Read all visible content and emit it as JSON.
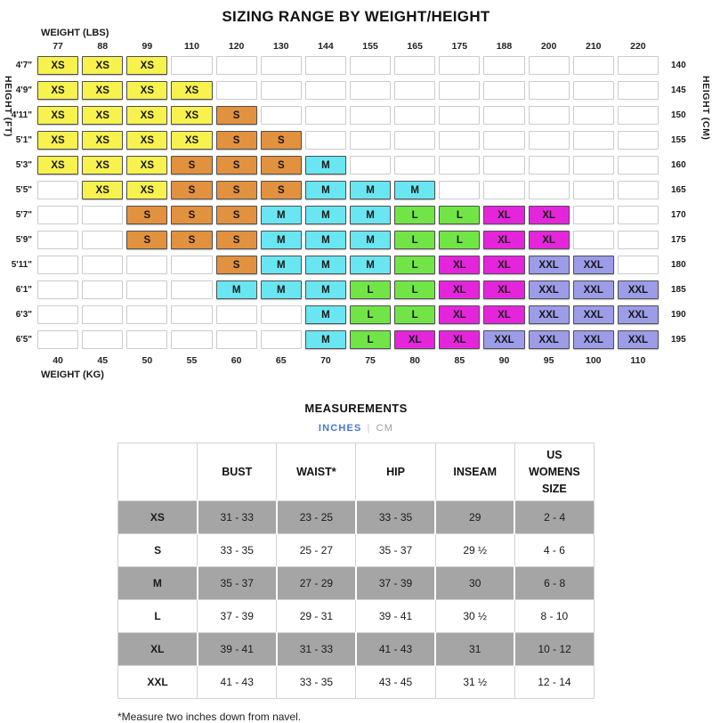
{
  "chart_data": [
    {
      "type": "heatmap",
      "title": "SIZING RANGE BY WEIGHT/HEIGHT",
      "x_top_label": "WEIGHT (LBS)",
      "x_top_ticks": [
        "77",
        "88",
        "99",
        "110",
        "120",
        "130",
        "144",
        "155",
        "165",
        "175",
        "188",
        "200",
        "210",
        "220"
      ],
      "x_bottom_label": "WEIGHT (KG)",
      "x_bottom_ticks": [
        "40",
        "45",
        "50",
        "55",
        "60",
        "65",
        "70",
        "75",
        "80",
        "85",
        "90",
        "95",
        "100",
        "110"
      ],
      "y_left_label": "HEIGHT (FT)",
      "y_right_label": "HEIGHT (CM)",
      "size_colors": {
        "XS": "#F7F24E",
        "S": "#E2913E",
        "M": "#69E6F1",
        "L": "#72E546",
        "XL": "#E525DB",
        "XXL": "#9C9CE9"
      },
      "rows": [
        {
          "ft": "4'7\"",
          "cm": "140",
          "cells": [
            "XS",
            "XS",
            "XS",
            "",
            "",
            "",
            "",
            "",
            "",
            "",
            "",
            "",
            "",
            ""
          ]
        },
        {
          "ft": "4'9\"",
          "cm": "145",
          "cells": [
            "XS",
            "XS",
            "XS",
            "XS",
            "",
            "",
            "",
            "",
            "",
            "",
            "",
            "",
            "",
            ""
          ]
        },
        {
          "ft": "4'11\"",
          "cm": "150",
          "cells": [
            "XS",
            "XS",
            "XS",
            "XS",
            "S",
            "",
            "",
            "",
            "",
            "",
            "",
            "",
            "",
            ""
          ]
        },
        {
          "ft": "5'1\"",
          "cm": "155",
          "cells": [
            "XS",
            "XS",
            "XS",
            "XS",
            "S",
            "S",
            "",
            "",
            "",
            "",
            "",
            "",
            "",
            ""
          ]
        },
        {
          "ft": "5'3\"",
          "cm": "160",
          "cells": [
            "XS",
            "XS",
            "XS",
            "S",
            "S",
            "S",
            "M",
            "",
            "",
            "",
            "",
            "",
            "",
            ""
          ]
        },
        {
          "ft": "5'5\"",
          "cm": "165",
          "cells": [
            "",
            "XS",
            "XS",
            "S",
            "S",
            "S",
            "M",
            "M",
            "M",
            "",
            "",
            "",
            "",
            ""
          ]
        },
        {
          "ft": "5'7\"",
          "cm": "170",
          "cells": [
            "",
            "",
            "S",
            "S",
            "S",
            "M",
            "M",
            "M",
            "L",
            "L",
            "XL",
            "XL",
            "",
            ""
          ]
        },
        {
          "ft": "5'9\"",
          "cm": "175",
          "cells": [
            "",
            "",
            "S",
            "S",
            "S",
            "M",
            "M",
            "M",
            "L",
            "L",
            "XL",
            "XL",
            "",
            ""
          ]
        },
        {
          "ft": "5'11\"",
          "cm": "180",
          "cells": [
            "",
            "",
            "",
            "",
            "S",
            "M",
            "M",
            "M",
            "L",
            "XL",
            "XL",
            "XXL",
            "XXL",
            ""
          ]
        },
        {
          "ft": "6'1\"",
          "cm": "185",
          "cells": [
            "",
            "",
            "",
            "",
            "M",
            "M",
            "M",
            "L",
            "L",
            "XL",
            "XL",
            "XXL",
            "XXL",
            "XXL"
          ]
        },
        {
          "ft": "6'3\"",
          "cm": "190",
          "cells": [
            "",
            "",
            "",
            "",
            "",
            "",
            "M",
            "L",
            "L",
            "XL",
            "XL",
            "XXL",
            "XXL",
            "XXL"
          ]
        },
        {
          "ft": "6'5\"",
          "cm": "195",
          "cells": [
            "",
            "",
            "",
            "",
            "",
            "",
            "M",
            "L",
            "XL",
            "XL",
            "XXL",
            "XXL",
            "XXL",
            "XXL"
          ]
        }
      ]
    },
    {
      "type": "table",
      "title": "MEASUREMENTS",
      "units": {
        "options": [
          "INCHES",
          "CM"
        ],
        "separator": "|",
        "active": "INCHES",
        "active_color": "#4577D4",
        "inactive_color": "#9B9B9B"
      },
      "columns": [
        "BUST",
        "WAIST*",
        "HIP",
        "INSEAM",
        "US WOMENS SIZE"
      ],
      "shaded_row_color": "#A5A5A5",
      "rows": [
        {
          "size": "XS",
          "values": [
            "31 - 33",
            "23 - 25",
            "33 - 35",
            "29",
            "2 - 4"
          ],
          "shaded": true
        },
        {
          "size": "S",
          "values": [
            "33 - 35",
            "25 - 27",
            "35 - 37",
            "29 ½",
            "4 - 6"
          ],
          "shaded": false
        },
        {
          "size": "M",
          "values": [
            "35 - 37",
            "27 - 29",
            "37 - 39",
            "30",
            "6 - 8"
          ],
          "shaded": true
        },
        {
          "size": "L",
          "values": [
            "37 - 39",
            "29 - 31",
            "39 - 41",
            "30 ½",
            "8 - 10"
          ],
          "shaded": false
        },
        {
          "size": "XL",
          "values": [
            "39 - 41",
            "31 - 33",
            "41 - 43",
            "31",
            "10 - 12"
          ],
          "shaded": true
        },
        {
          "size": "XXL",
          "values": [
            "41 - 43",
            "33 - 35",
            "43 - 45",
            "31 ½",
            "12 - 14"
          ],
          "shaded": false
        }
      ],
      "footnote": "*Measure two inches down from navel."
    }
  ]
}
